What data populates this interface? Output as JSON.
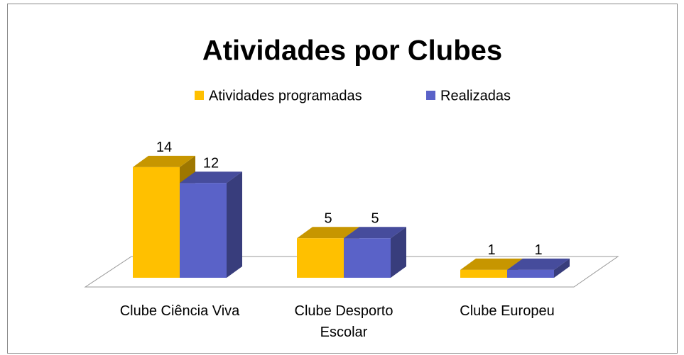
{
  "chart_data": {
    "type": "bar3d",
    "title": "Atividades por  Clubes",
    "categories": [
      "Clube Ciência Viva",
      "Clube Desporto Escolar",
      "Clube Europeu"
    ],
    "series": [
      {
        "name": "Atividades programadas",
        "color": "#FFC000",
        "values": [
          14,
          5,
          1
        ]
      },
      {
        "name": "Realizadas",
        "color": "#5A62C8",
        "values": [
          12,
          5,
          1
        ]
      }
    ],
    "legend": "top"
  }
}
